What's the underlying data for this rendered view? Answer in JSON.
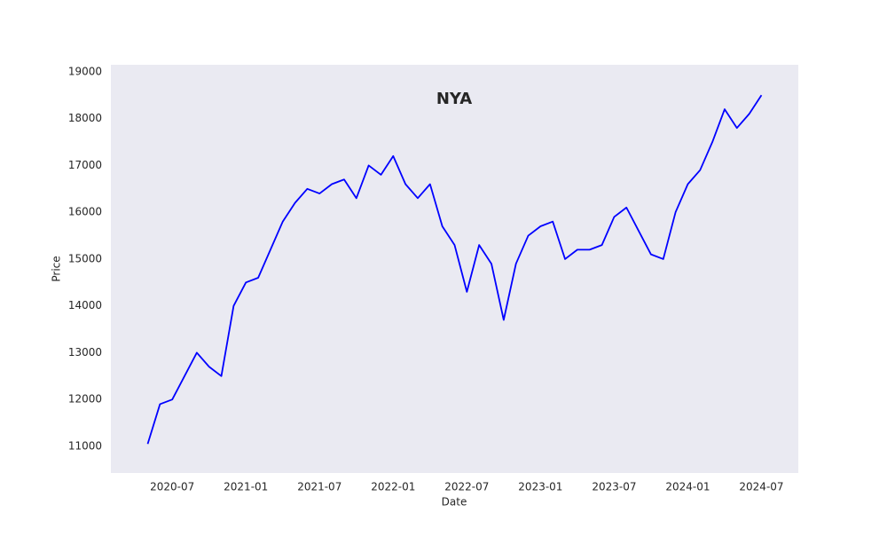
{
  "chart_data": {
    "type": "line",
    "title": "NYA",
    "xlabel": "Date",
    "ylabel": "Price",
    "x": [
      "2020-05",
      "2020-06",
      "2020-07",
      "2020-08",
      "2020-09",
      "2020-10",
      "2020-11",
      "2020-12",
      "2021-01",
      "2021-02",
      "2021-03",
      "2021-04",
      "2021-05",
      "2021-06",
      "2021-07",
      "2021-08",
      "2021-09",
      "2021-10",
      "2021-11",
      "2021-12",
      "2022-01",
      "2022-02",
      "2022-03",
      "2022-04",
      "2022-05",
      "2022-06",
      "2022-07",
      "2022-08",
      "2022-09",
      "2022-10",
      "2022-11",
      "2022-12",
      "2023-01",
      "2023-02",
      "2023-03",
      "2023-04",
      "2023-05",
      "2023-06",
      "2023-07",
      "2023-08",
      "2023-09",
      "2023-10",
      "2023-11",
      "2023-12",
      "2024-01",
      "2024-02",
      "2024-03",
      "2024-04",
      "2024-05",
      "2024-06",
      "2024-07"
    ],
    "series": [
      {
        "name": "NYA",
        "color": "#0000ff",
        "values": [
          11050,
          11900,
          12000,
          12500,
          13000,
          12700,
          12500,
          14000,
          14500,
          14600,
          15200,
          15800,
          16200,
          16500,
          16400,
          16600,
          16700,
          16300,
          17000,
          16800,
          17200,
          16600,
          16300,
          16600,
          15700,
          15300,
          14300,
          15300,
          14900,
          13700,
          14900,
          15500,
          15700,
          15800,
          15000,
          15200,
          15200,
          15300,
          15900,
          16100,
          15600,
          15100,
          15000,
          16000,
          16600,
          16900,
          17500,
          18200,
          17800,
          18100,
          18500
        ]
      }
    ],
    "xlim": [
      "2020-02",
      "2024-10"
    ],
    "xticks": [
      "2020-07",
      "2021-01",
      "2021-07",
      "2022-01",
      "2022-07",
      "2023-01",
      "2023-07",
      "2024-01",
      "2024-07"
    ],
    "ylim": [
      10430,
      19150
    ],
    "yticks": [
      11000,
      12000,
      13000,
      14000,
      15000,
      16000,
      17000,
      18000,
      19000
    ],
    "background": "#eaeaf2",
    "grid": false
  }
}
